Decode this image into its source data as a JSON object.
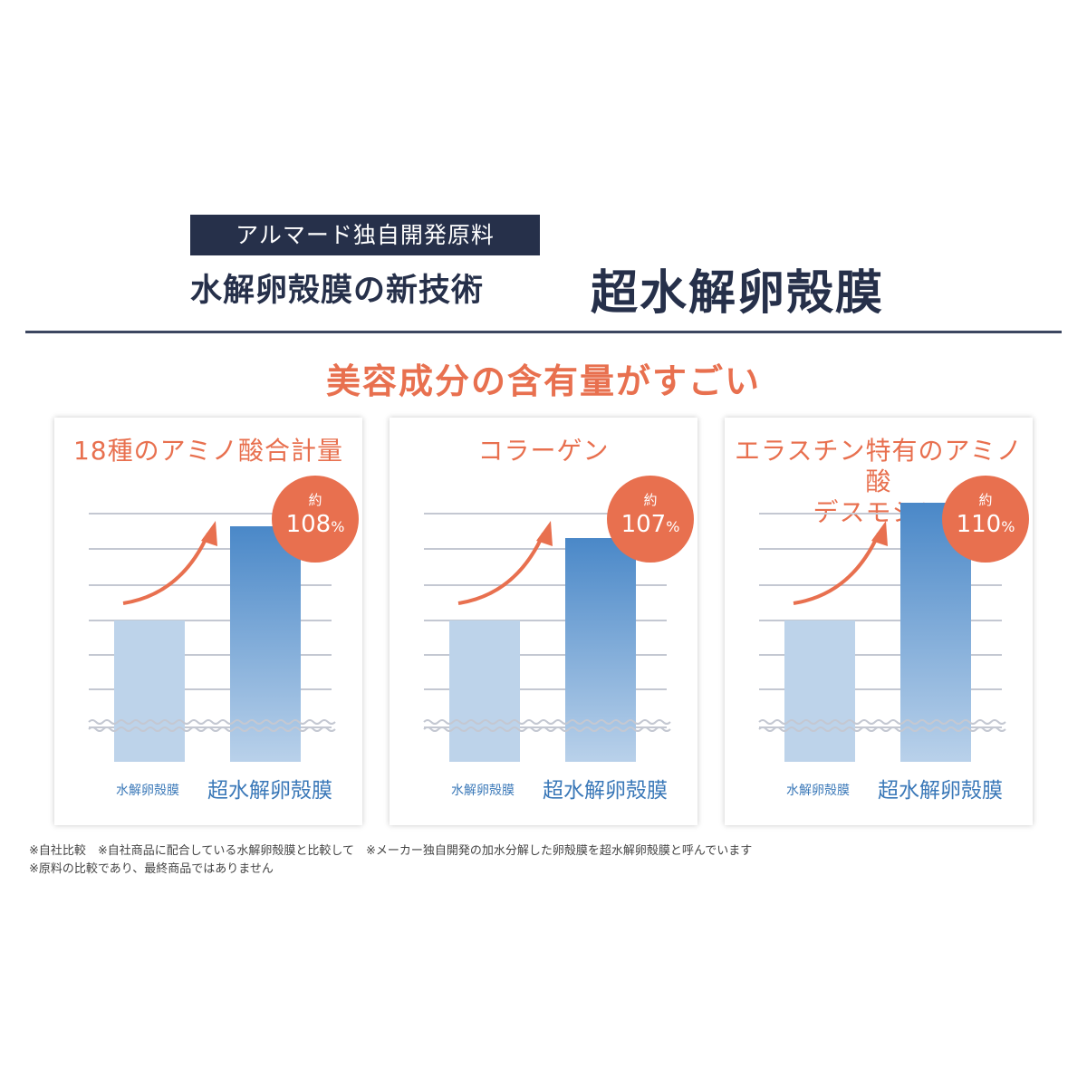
{
  "header": {
    "badge": "アルマード独自開発原料",
    "subtitle": "水解卵殻膜の新技術",
    "title": "超水解卵殻膜"
  },
  "headline": "美容成分の含有量がすごい",
  "colors": {
    "navy": "#26304a",
    "accent": "#e8704f",
    "bar_light": "#bdd3ea",
    "bar_dark_top": "#4a88c8",
    "bar_dark_bottom": "#b9d1ea",
    "label_blue": "#3a78b8"
  },
  "chart_data": [
    {
      "type": "bar",
      "title": "18種のアミノ酸合計量",
      "categories": [
        "水解卵殻膜",
        "超水解卵殻膜"
      ],
      "values": [
        100,
        108
      ],
      "badge_prefix": "約",
      "badge_value": "108",
      "badge_unit": "%",
      "axis_break": true
    },
    {
      "type": "bar",
      "title": "コラーゲン",
      "categories": [
        "水解卵殻膜",
        "超水解卵殻膜"
      ],
      "values": [
        100,
        107
      ],
      "badge_prefix": "約",
      "badge_value": "107",
      "badge_unit": "%",
      "axis_break": true
    },
    {
      "type": "bar",
      "title": "エラスチン特有のアミノ酸\nデスモシン",
      "categories": [
        "水解卵殻膜",
        "超水解卵殻膜"
      ],
      "values": [
        100,
        110
      ],
      "badge_prefix": "約",
      "badge_value": "110",
      "badge_unit": "%",
      "axis_break": true
    }
  ],
  "footnotes": [
    "※自社比較　※自社商品に配合している水解卵殻膜と比較して　※メーカー独自開発の加水分解した卵殻膜を超水解卵殻膜と呼んでいます",
    "※原料の比較であり、最終商品ではありません"
  ]
}
